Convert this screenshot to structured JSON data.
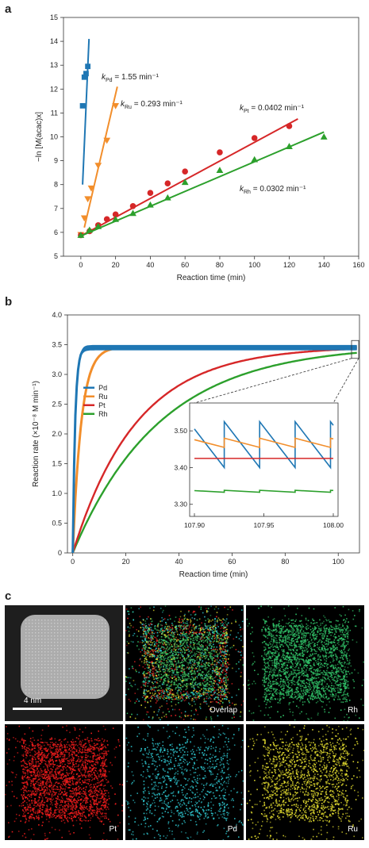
{
  "panels": {
    "a": "a",
    "b": "b",
    "c": "c"
  },
  "chart_data": [
    {
      "type": "scatter",
      "xlabel": "Reaction time (min)",
      "ylabel": "−ln [M(acac)x]",
      "xlim": [
        -10,
        160
      ],
      "ylim": [
        5,
        15
      ],
      "xticks": [
        0,
        20,
        40,
        60,
        80,
        100,
        120,
        140,
        160
      ],
      "yticks": [
        5,
        6,
        7,
        8,
        9,
        10,
        11,
        12,
        13,
        14,
        15
      ],
      "annotations": [
        {
          "pre": "k",
          "sub": "Pd",
          "post": " = 1.55 min⁻¹"
        },
        {
          "pre": "k",
          "sub": "Ru",
          "post": " = 0.293 min⁻¹"
        },
        {
          "pre": "k",
          "sub": "Pt",
          "post": " = 0.0402 min⁻¹"
        },
        {
          "pre": "k",
          "sub": "Rh",
          "post": " = 0.0302 min⁻¹"
        }
      ],
      "series": [
        {
          "key": "Pd",
          "color": "#1f77b4",
          "marker": "square",
          "x": [
            0,
            1,
            2,
            3,
            4
          ],
          "y": [
            5.9,
            11.3,
            12.5,
            12.65,
            12.95
          ],
          "fit": [
            [
              1,
              8.0
            ],
            [
              4.7,
              14.1
            ]
          ]
        },
        {
          "key": "Ru",
          "color": "#f28e2b",
          "marker": "triangle-down",
          "x": [
            0,
            2,
            4,
            6,
            10,
            15,
            20
          ],
          "y": [
            5.9,
            6.6,
            7.4,
            7.85,
            8.8,
            9.85,
            11.3
          ],
          "fit": [
            [
              2,
              6.2
            ],
            [
              21,
              12.1
            ]
          ]
        },
        {
          "key": "Pt",
          "color": "#d62728",
          "marker": "circle",
          "x": [
            0,
            5,
            10,
            15,
            20,
            30,
            40,
            50,
            60,
            80,
            100,
            120
          ],
          "y": [
            5.88,
            6.05,
            6.3,
            6.55,
            6.75,
            7.1,
            7.65,
            8.05,
            8.55,
            9.35,
            9.95,
            10.45
          ],
          "fit": [
            [
              0,
              5.85
            ],
            [
              125,
              10.75
            ]
          ]
        },
        {
          "key": "Rh",
          "color": "#2ca02c",
          "marker": "triangle-up",
          "x": [
            0,
            5,
            10,
            20,
            30,
            40,
            50,
            60,
            80,
            100,
            120,
            140
          ],
          "y": [
            5.88,
            6.1,
            6.25,
            6.55,
            6.8,
            7.15,
            7.45,
            8.1,
            8.6,
            9.05,
            9.6,
            10.0
          ],
          "fit": [
            [
              0,
              5.85
            ],
            [
              140,
              10.2
            ]
          ]
        }
      ]
    },
    {
      "type": "line",
      "xlabel": "Reaction time (min)",
      "ylabel": "Reaction rate (×10⁻⁸ M min⁻¹)",
      "xlim": [
        -2,
        108
      ],
      "ylim": [
        0,
        4
      ],
      "xticks": [
        0,
        20,
        40,
        60,
        80,
        100
      ],
      "yticks": [
        0,
        0.5,
        1.0,
        1.5,
        2.0,
        2.5,
        3.0,
        3.5,
        4.0
      ],
      "ytick_labels": [
        "0",
        "0.5",
        "1.0",
        "1.5",
        "2.0",
        "2.5",
        "3.0",
        "3.5",
        "4.0"
      ],
      "legend": {
        "placement": "center-left",
        "entries": [
          "Pd",
          "Ru",
          "Pt",
          "Rh"
        ]
      },
      "series": [
        {
          "key": "Pd",
          "color": "#1f77b4",
          "plateau": 3.45,
          "tau": 0.9,
          "band": 0.09
        },
        {
          "key": "Ru",
          "color": "#f28e2b",
          "plateau": 3.46,
          "tau": 3.2,
          "band": 0.03
        },
        {
          "key": "Pt",
          "color": "#d62728",
          "plateau": 3.47,
          "tau": 24
        },
        {
          "key": "Rh",
          "color": "#2ca02c",
          "plateau": 3.5,
          "tau": 33
        }
      ],
      "inset": {
        "xlim": [
          107.9,
          108.0
        ],
        "ylim": [
          3.28,
          3.55
        ],
        "xticks": [
          107.9,
          107.95,
          108.0
        ],
        "xtick_labels": [
          "107.90",
          "107.95",
          "108.00"
        ],
        "yticks": [
          3.3,
          3.4,
          3.5
        ],
        "ytick_labels": [
          "3.30",
          "3.40",
          "3.50"
        ],
        "series": [
          {
            "key": "Pd",
            "color": "#1f77b4",
            "period": 0.0255,
            "high": 3.525,
            "low": 3.4
          },
          {
            "key": "Ru",
            "color": "#f28e2b",
            "period": 0.0255,
            "high": 3.48,
            "low": 3.455
          },
          {
            "key": "Pt",
            "color": "#d62728",
            "flat": 3.425
          },
          {
            "key": "Rh",
            "color": "#2ca02c",
            "period": 0.0255,
            "high": 3.338,
            "low": 3.333
          }
        ]
      }
    }
  ],
  "micrographs": [
    {
      "key": "haadf",
      "label": "",
      "scale_bar": "4 nm",
      "color": "#dcdcdc",
      "mode": "haadf"
    },
    {
      "key": "overlap",
      "label": "Overlap",
      "color": "#3fbf60",
      "mode": "overlap"
    },
    {
      "key": "rh",
      "label": "Rh",
      "color": "#31c268",
      "mode": "dense"
    },
    {
      "key": "pt",
      "label": "Pt",
      "color": "#f01c1c",
      "mode": "dense"
    },
    {
      "key": "pd",
      "label": "Pd",
      "color": "#2ec6cf",
      "mode": "sparse"
    },
    {
      "key": "ru",
      "label": "Ru",
      "color": "#e4dd2f",
      "mode": "medium"
    }
  ]
}
